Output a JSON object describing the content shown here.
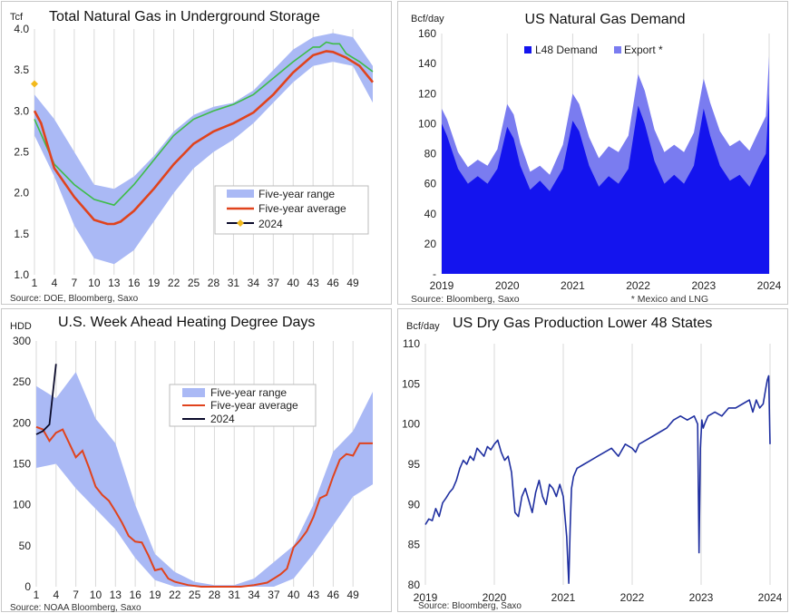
{
  "colors": {
    "range_fill": "#aab9f5",
    "avg_line": "#e0431d",
    "five_year_green": "#3ebc49",
    "current_line": "#0a0a2a",
    "current_marker": "#f2b91c",
    "l48_fill": "#1414ee",
    "export_fill": "#7a7cf0",
    "production_line": "#1f2fa0",
    "grid": "#d9d9d9",
    "text": "#222222"
  },
  "chart_data": [
    {
      "id": "storage",
      "type": "area",
      "title": "Total Natural Gas in Underground Storage",
      "unit_label": "Tcf",
      "source": "Source: DOE, Bloomberg, Saxo",
      "x_ticks": [
        "1",
        "4",
        "7",
        "10",
        "13",
        "16",
        "19",
        "22",
        "25",
        "28",
        "31",
        "34",
        "37",
        "40",
        "43",
        "46",
        "49"
      ],
      "y_ticks": [
        "1.0",
        "1.5",
        "2.0",
        "2.5",
        "3.0",
        "3.5",
        "4.0"
      ],
      "xlim": [
        1,
        52
      ],
      "ylim": [
        1.0,
        4.0
      ],
      "grid": "vertical",
      "legend": {
        "placement": "center",
        "entries": [
          "Five-year range",
          "Five-year average",
          "2024"
        ]
      },
      "range_x": [
        1,
        4,
        7,
        10,
        13,
        16,
        19,
        22,
        25,
        28,
        31,
        34,
        37,
        40,
        43,
        46,
        49,
        52
      ],
      "range_low": [
        2.7,
        2.2,
        1.6,
        1.2,
        1.13,
        1.3,
        1.65,
        2.0,
        2.3,
        2.5,
        2.65,
        2.85,
        3.1,
        3.35,
        3.55,
        3.6,
        3.55,
        3.1
      ],
      "range_high": [
        3.2,
        2.9,
        2.5,
        2.1,
        2.05,
        2.2,
        2.45,
        2.75,
        2.95,
        3.05,
        3.1,
        3.25,
        3.5,
        3.75,
        3.9,
        3.95,
        3.9,
        3.55
      ],
      "average_x": [
        1,
        2,
        4,
        7,
        10,
        12,
        13,
        14,
        16,
        19,
        22,
        25,
        28,
        31,
        34,
        37,
        40,
        43,
        45,
        46,
        48,
        50,
        52
      ],
      "average": [
        3.0,
        2.85,
        2.3,
        1.95,
        1.67,
        1.62,
        1.62,
        1.65,
        1.78,
        2.05,
        2.35,
        2.6,
        2.75,
        2.85,
        2.98,
        3.2,
        3.47,
        3.68,
        3.73,
        3.72,
        3.65,
        3.55,
        3.35
      ],
      "five_year_x": [
        1,
        4,
        7,
        10,
        13,
        16,
        19,
        22,
        25,
        28,
        31,
        34,
        37,
        40,
        43,
        44,
        45,
        46,
        47,
        48,
        50,
        52
      ],
      "five_year": [
        2.9,
        2.35,
        2.1,
        1.92,
        1.85,
        2.1,
        2.4,
        2.7,
        2.9,
        3.0,
        3.08,
        3.2,
        3.4,
        3.6,
        3.78,
        3.78,
        3.84,
        3.82,
        3.82,
        3.7,
        3.6,
        3.48
      ],
      "current_x": [
        1
      ],
      "current": [
        3.33
      ]
    },
    {
      "id": "demand",
      "type": "area",
      "title": "US Natural Gas Demand",
      "unit_label": "Bcf/day",
      "source": "Source: Bloomberg, Saxo",
      "note": "* Mexico and LNG",
      "x_ticks": [
        "2019",
        "2020",
        "2021",
        "2022",
        "2023",
        "2024"
      ],
      "y_ticks": [
        "-",
        "20",
        "40",
        "60",
        "80",
        "100",
        "120",
        "140",
        "160"
      ],
      "xlim": [
        2019,
        2024
      ],
      "ylim": [
        0,
        160
      ],
      "grid": "vertical",
      "legend": {
        "placement": "top-center",
        "entries": [
          "L48 Demand",
          "Export *"
        ]
      },
      "series": [
        {
          "name": "L48 Demand",
          "x": [
            2019.0,
            2019.08,
            2019.25,
            2019.4,
            2019.55,
            2019.7,
            2019.85,
            2020.0,
            2020.1,
            2020.2,
            2020.35,
            2020.5,
            2020.65,
            2020.85,
            2021.0,
            2021.1,
            2021.25,
            2021.4,
            2021.55,
            2021.7,
            2021.85,
            2022.0,
            2022.1,
            2022.25,
            2022.4,
            2022.55,
            2022.7,
            2022.85,
            2023.0,
            2023.1,
            2023.25,
            2023.4,
            2023.55,
            2023.7,
            2023.85,
            2023.95,
            2024.0
          ],
          "values": [
            100,
            92,
            70,
            60,
            65,
            60,
            70,
            98,
            90,
            72,
            56,
            62,
            55,
            70,
            102,
            95,
            72,
            58,
            65,
            60,
            70,
            112,
            100,
            75,
            60,
            66,
            60,
            72,
            110,
            92,
            72,
            62,
            66,
            58,
            72,
            80,
            120
          ]
        },
        {
          "name": "Export *",
          "x": [
            2019.0,
            2019.08,
            2019.25,
            2019.4,
            2019.55,
            2019.7,
            2019.85,
            2020.0,
            2020.1,
            2020.2,
            2020.35,
            2020.5,
            2020.65,
            2020.85,
            2021.0,
            2021.1,
            2021.25,
            2021.4,
            2021.55,
            2021.7,
            2021.85,
            2022.0,
            2022.1,
            2022.25,
            2022.4,
            2022.55,
            2022.7,
            2022.85,
            2023.0,
            2023.1,
            2023.25,
            2023.4,
            2023.55,
            2023.7,
            2023.85,
            2023.95,
            2024.0
          ],
          "values": [
            10,
            11,
            11,
            11,
            11,
            12,
            13,
            15,
            16,
            15,
            12,
            10,
            11,
            16,
            18,
            18,
            19,
            19,
            20,
            21,
            22,
            21,
            22,
            21,
            21,
            20,
            21,
            22,
            20,
            22,
            23,
            23,
            23,
            24,
            24,
            25,
            25
          ]
        }
      ]
    },
    {
      "id": "hdd",
      "type": "area",
      "title": "U.S. Week Ahead Heating Degree Days",
      "unit_label": "HDD",
      "source": "Source: NOAA Bloomberg, Saxo",
      "x_ticks": [
        "1",
        "4",
        "7",
        "10",
        "13",
        "16",
        "19",
        "22",
        "25",
        "28",
        "31",
        "34",
        "37",
        "40",
        "43",
        "46",
        "49"
      ],
      "y_ticks": [
        "0",
        "50",
        "100",
        "150",
        "200",
        "250",
        "300"
      ],
      "xlim": [
        1,
        52
      ],
      "ylim": [
        0,
        300
      ],
      "grid": "vertical",
      "legend": {
        "placement": "center",
        "entries": [
          "Five-year range",
          "Five-year average",
          "2024"
        ]
      },
      "range_x": [
        1,
        4,
        7,
        10,
        13,
        16,
        19,
        22,
        25,
        28,
        31,
        34,
        37,
        40,
        43,
        46,
        49,
        52
      ],
      "range_low": [
        145,
        150,
        120,
        95,
        70,
        35,
        8,
        0,
        0,
        0,
        0,
        0,
        0,
        10,
        40,
        75,
        110,
        125
      ],
      "range_high": [
        245,
        230,
        262,
        205,
        175,
        100,
        40,
        18,
        6,
        2,
        2,
        10,
        30,
        50,
        100,
        165,
        190,
        238
      ],
      "average_x": [
        1,
        2,
        3,
        4,
        5,
        6,
        7,
        8,
        9,
        10,
        11,
        12,
        13,
        14,
        15,
        16,
        17,
        18,
        19,
        20,
        21,
        22,
        24,
        26,
        28,
        30,
        32,
        34,
        36,
        37,
        38,
        39,
        40,
        41,
        42,
        43,
        44,
        45,
        46,
        47,
        48,
        49,
        50,
        51,
        52
      ],
      "average": [
        195,
        192,
        178,
        188,
        192,
        175,
        158,
        166,
        145,
        122,
        112,
        105,
        92,
        78,
        62,
        55,
        54,
        38,
        20,
        22,
        10,
        6,
        2,
        0,
        0,
        0,
        0,
        2,
        5,
        10,
        15,
        22,
        48,
        57,
        68,
        85,
        108,
        112,
        135,
        155,
        162,
        160,
        175,
        175,
        175
      ],
      "current_x": [
        1,
        2,
        3,
        4
      ],
      "current": [
        186,
        190,
        198,
        272
      ]
    },
    {
      "id": "production",
      "type": "line",
      "title": "US Dry Gas Production Lower 48 States",
      "unit_label": "Bcf/day",
      "source": "Source: Bloomberg, Saxo",
      "x_ticks": [
        "2019",
        "2020",
        "2021",
        "2022",
        "2023",
        "2024"
      ],
      "y_ticks": [
        "80",
        "85",
        "90",
        "95",
        "100",
        "105",
        "110"
      ],
      "xlim": [
        2019,
        2024
      ],
      "ylim": [
        80,
        110
      ],
      "grid": "vertical",
      "series": [
        {
          "name": "",
          "x": [
            2019.0,
            2019.05,
            2019.1,
            2019.15,
            2019.2,
            2019.25,
            2019.3,
            2019.35,
            2019.4,
            2019.45,
            2019.5,
            2019.55,
            2019.6,
            2019.65,
            2019.7,
            2019.75,
            2019.8,
            2019.85,
            2019.9,
            2019.95,
            2020.0,
            2020.05,
            2020.1,
            2020.15,
            2020.2,
            2020.25,
            2020.3,
            2020.35,
            2020.4,
            2020.45,
            2020.5,
            2020.55,
            2020.6,
            2020.65,
            2020.7,
            2020.75,
            2020.8,
            2020.85,
            2020.9,
            2020.95,
            2021.0,
            2021.05,
            2021.08,
            2021.1,
            2021.12,
            2021.15,
            2021.2,
            2021.3,
            2021.4,
            2021.5,
            2021.6,
            2021.7,
            2021.8,
            2021.9,
            2022.0,
            2022.05,
            2022.1,
            2022.2,
            2022.3,
            2022.4,
            2022.5,
            2022.6,
            2022.7,
            2022.8,
            2022.9,
            2022.95,
            2022.97,
            2022.99,
            2023.01,
            2023.03,
            2023.05,
            2023.1,
            2023.2,
            2023.3,
            2023.4,
            2023.5,
            2023.6,
            2023.7,
            2023.75,
            2023.8,
            2023.85,
            2023.9,
            2023.94,
            2023.96,
            2023.98,
            2024.0
          ],
          "values": [
            87.5,
            88.2,
            88.0,
            89.5,
            88.5,
            90.2,
            90.8,
            91.5,
            92.0,
            93.0,
            94.5,
            95.5,
            95.0,
            96.0,
            95.5,
            97.0,
            96.5,
            96.0,
            97.2,
            96.8,
            97.5,
            98.0,
            96.5,
            95.5,
            96.0,
            94.0,
            89.0,
            88.5,
            91.0,
            92.0,
            90.5,
            89.0,
            91.5,
            93.0,
            91.0,
            90.0,
            92.5,
            92.0,
            91.0,
            92.5,
            91.0,
            86.0,
            80.2,
            87.0,
            92.0,
            93.5,
            94.5,
            95.0,
            95.5,
            96.0,
            96.5,
            97.0,
            96.0,
            97.5,
            97.0,
            96.5,
            97.5,
            98.0,
            98.5,
            99.0,
            99.5,
            100.5,
            101.0,
            100.5,
            101.0,
            100.0,
            84.0,
            97.0,
            100.5,
            99.5,
            100.0,
            101.0,
            101.5,
            101.0,
            102.0,
            102.0,
            102.5,
            103.0,
            101.5,
            103.0,
            102.0,
            102.5,
            104.5,
            105.5,
            106.0,
            97.5
          ]
        }
      ]
    }
  ]
}
